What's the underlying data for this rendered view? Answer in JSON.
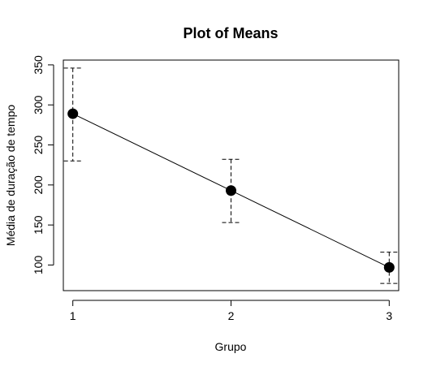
{
  "chart_data": {
    "type": "line",
    "title": "Plot of Means",
    "xlabel": "Grupo",
    "ylabel": "Média de duração de tempo",
    "x": [
      1,
      2,
      3
    ],
    "x_tick_labels": [
      "1",
      "2",
      "3"
    ],
    "xlim": [
      0.94,
      3.06
    ],
    "y_ticks": [
      100,
      150,
      200,
      250,
      300,
      350
    ],
    "y_tick_labels": [
      "100",
      "150",
      "200",
      "250",
      "300",
      "350"
    ],
    "ylim": [
      68,
      356
    ],
    "grid": false,
    "legend": "none",
    "series": [
      {
        "values": [
          289,
          193,
          97
        ],
        "error_lower": [
          230,
          153,
          77
        ],
        "error_upper": [
          346,
          232,
          116
        ]
      }
    ],
    "colors": {
      "line": "#000000",
      "marker": "#000000",
      "axis": "#000000"
    }
  }
}
